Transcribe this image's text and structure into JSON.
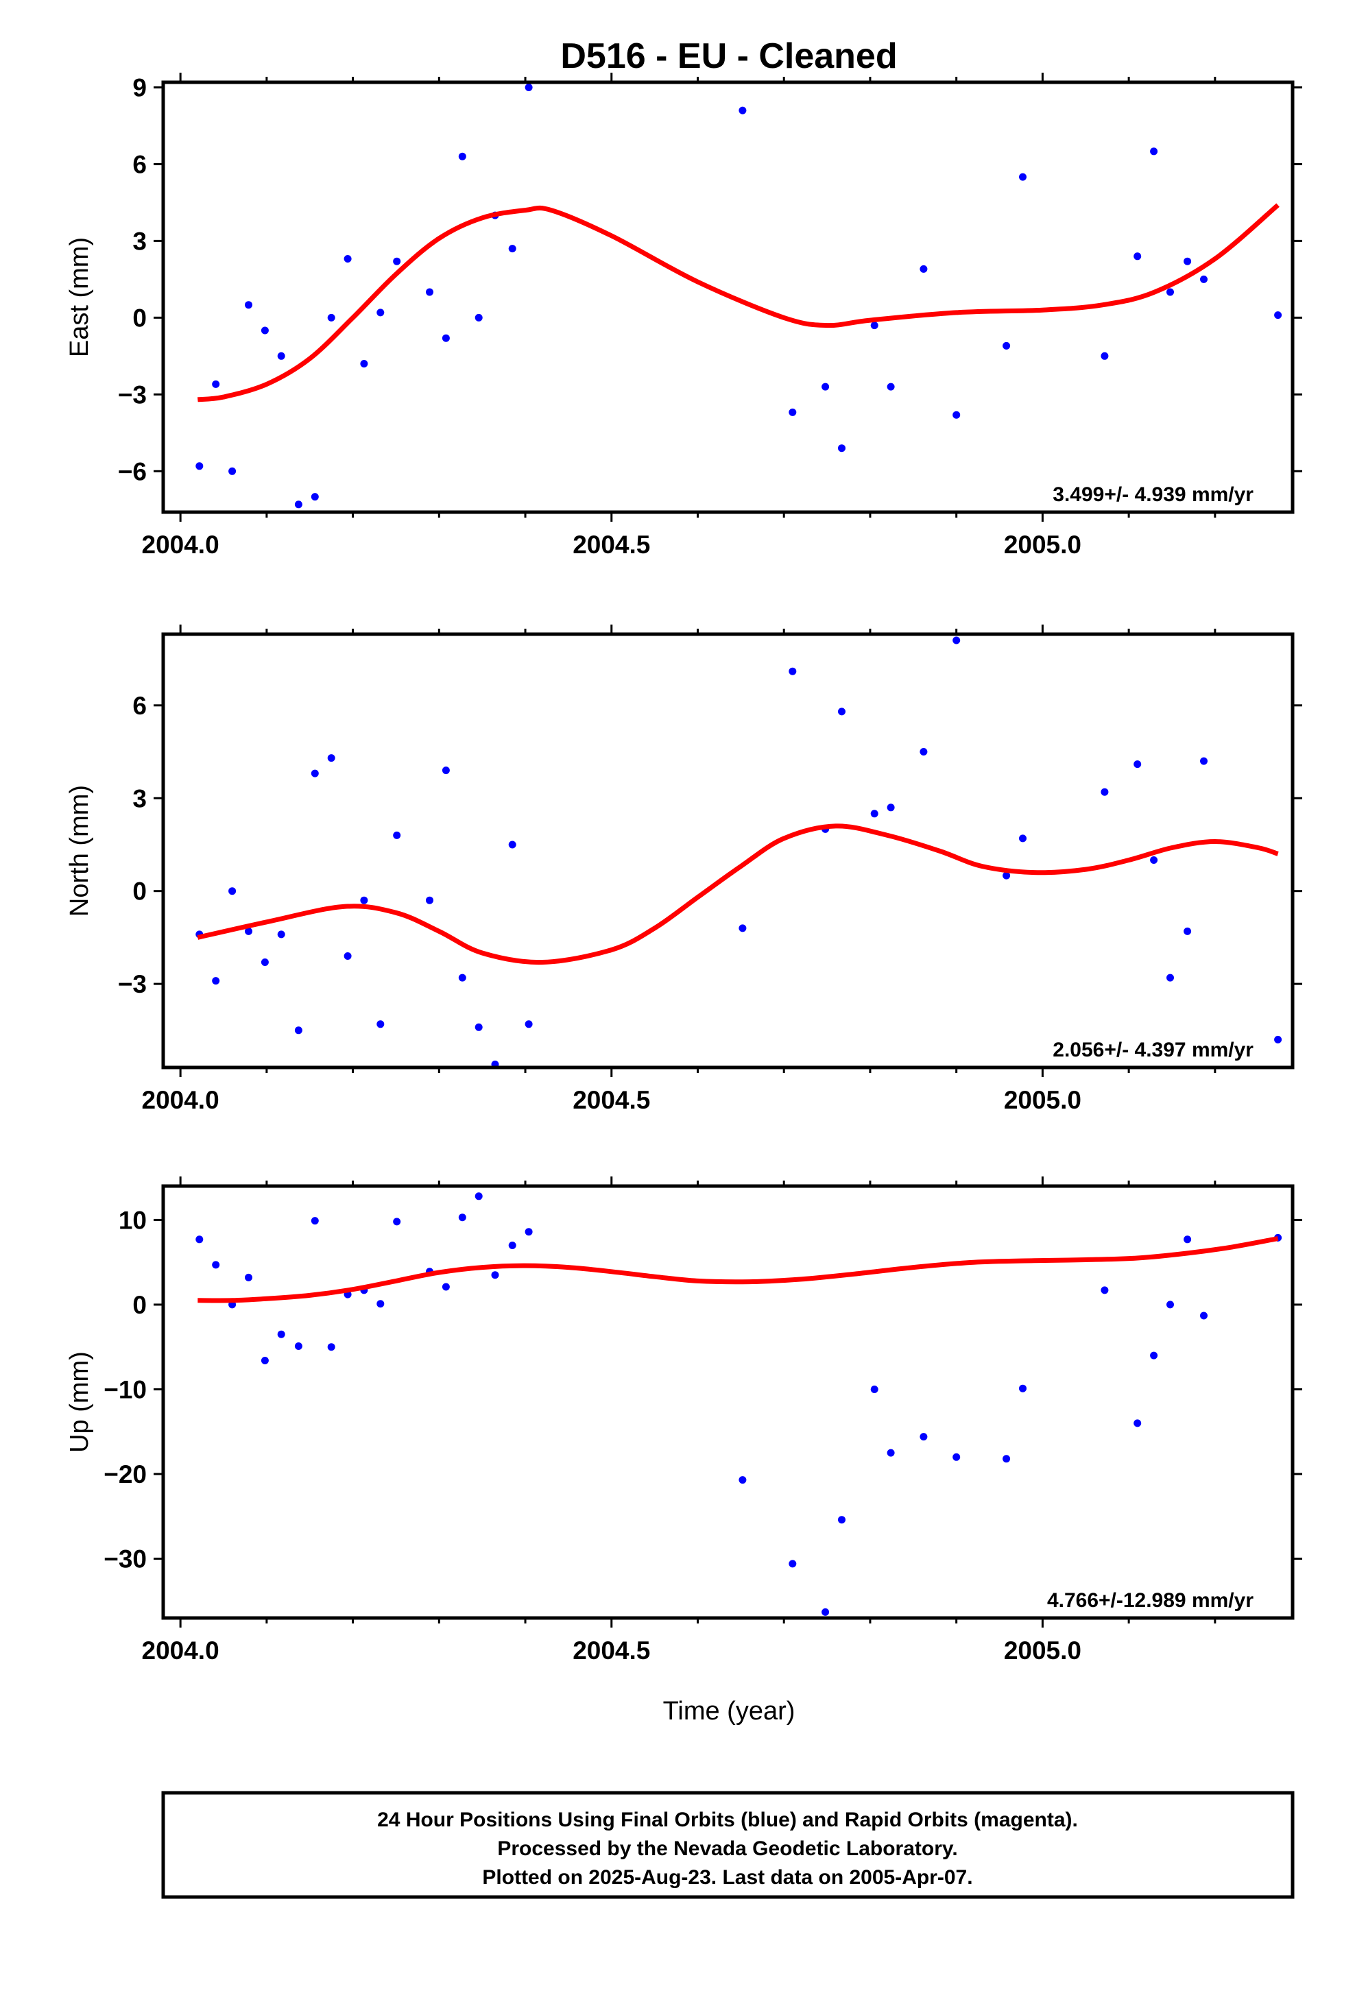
{
  "title": "D516  - EU - Cleaned",
  "xlabel": "Time (year)",
  "footer": {
    "line1": "24 Hour Positions Using Final Orbits (blue) and Rapid Orbits (magenta).",
    "line2": "Processed by the Nevada Geodetic Laboratory.",
    "line3": "Plotted on 2025-Aug-23. Last data on 2005-Apr-07."
  },
  "colors": {
    "points": "#0000ff",
    "fit": "#ff0000",
    "axes": "#000000"
  },
  "chart_data": [
    {
      "type": "scatter",
      "ylabel": "East (mm)",
      "rate_label": "3.499+/- 4.939 mm/yr",
      "xlim": [
        2003.98,
        2005.29
      ],
      "ylim": [
        -7.6,
        9.2
      ],
      "x_ticks": [
        2004.0,
        2004.5,
        2005.0
      ],
      "x_tick_labels": [
        "2004.0",
        "2004.5",
        "2005.0"
      ],
      "y_ticks": [
        -6,
        -3,
        0,
        3,
        6,
        9
      ],
      "y_tick_labels": [
        "−6",
        "−3",
        "0",
        "3",
        "6",
        "9"
      ],
      "points": {
        "x": [
          2004.022,
          2004.041,
          2004.06,
          2004.079,
          2004.098,
          2004.117,
          2004.137,
          2004.156,
          2004.175,
          2004.194,
          2004.213,
          2004.232,
          2004.251,
          2004.289,
          2004.308,
          2004.327,
          2004.346,
          2004.365,
          2004.385,
          2004.404,
          2004.652,
          2004.71,
          2004.748,
          2004.767,
          2004.805,
          2004.824,
          2004.862,
          2004.9,
          2004.958,
          2004.977,
          2005.072,
          2005.11,
          2005.129,
          2005.148,
          2005.168,
          2005.187,
          2005.273
        ],
        "y": [
          -5.8,
          -2.6,
          -6.0,
          0.5,
          -0.5,
          -1.5,
          -7.3,
          -7.0,
          0.0,
          2.3,
          -1.8,
          0.2,
          2.2,
          1.0,
          -0.8,
          6.3,
          0.0,
          4.0,
          2.7,
          9.0,
          8.1,
          -3.7,
          -2.7,
          -5.1,
          -0.3,
          -2.7,
          1.9,
          -3.8,
          -1.1,
          5.5,
          -1.5,
          2.4,
          6.5,
          1.0,
          2.2,
          1.5,
          0.1
        ]
      },
      "fit": {
        "x": [
          2004.02,
          2004.05,
          2004.1,
          2004.15,
          2004.2,
          2004.25,
          2004.3,
          2004.35,
          2004.4,
          2004.43,
          2004.5,
          2004.6,
          2004.7,
          2004.75,
          2004.8,
          2004.9,
          2005.0,
          2005.07,
          2005.13,
          2005.2,
          2005.273
        ],
        "y": [
          -3.2,
          -3.1,
          -2.6,
          -1.6,
          0.0,
          1.7,
          3.1,
          3.9,
          4.2,
          4.2,
          3.2,
          1.4,
          0.0,
          -0.3,
          -0.1,
          0.2,
          0.3,
          0.5,
          1.0,
          2.3,
          4.4
        ]
      }
    },
    {
      "type": "scatter",
      "ylabel": "North (mm)",
      "rate_label": "2.056+/- 4.397 mm/yr",
      "xlim": [
        2003.98,
        2005.29
      ],
      "ylim": [
        -5.7,
        8.3
      ],
      "x_ticks": [
        2004.0,
        2004.5,
        2005.0
      ],
      "x_tick_labels": [
        "2004.0",
        "2004.5",
        "2005.0"
      ],
      "y_ticks": [
        -3,
        0,
        3,
        6
      ],
      "y_tick_labels": [
        "−3",
        "0",
        "3",
        "6"
      ],
      "points": {
        "x": [
          2004.022,
          2004.041,
          2004.06,
          2004.079,
          2004.098,
          2004.117,
          2004.137,
          2004.156,
          2004.175,
          2004.194,
          2004.213,
          2004.232,
          2004.251,
          2004.289,
          2004.308,
          2004.327,
          2004.346,
          2004.365,
          2004.385,
          2004.404,
          2004.652,
          2004.71,
          2004.748,
          2004.767,
          2004.805,
          2004.824,
          2004.862,
          2004.9,
          2004.958,
          2004.977,
          2005.072,
          2005.11,
          2005.129,
          2005.148,
          2005.168,
          2005.187,
          2005.273
        ],
        "y": [
          -1.4,
          -2.9,
          0.0,
          -1.3,
          -2.3,
          -1.4,
          -4.5,
          3.8,
          4.3,
          -2.1,
          -0.3,
          -4.3,
          1.8,
          -0.3,
          3.9,
          -2.8,
          -4.4,
          -5.6,
          1.5,
          -4.3,
          -1.2,
          7.1,
          2.0,
          5.8,
          2.5,
          2.7,
          4.5,
          8.1,
          0.5,
          1.7,
          3.2,
          4.1,
          1.0,
          -2.8,
          -1.3,
          4.2,
          -4.8
        ]
      },
      "fit": {
        "x": [
          2004.02,
          2004.1,
          2004.19,
          2004.25,
          2004.3,
          2004.35,
          2004.42,
          2004.5,
          2004.55,
          2004.6,
          2004.65,
          2004.7,
          2004.76,
          2004.82,
          2004.88,
          2004.93,
          2004.99,
          2005.05,
          2005.1,
          2005.15,
          2005.2,
          2005.25,
          2005.273
        ],
        "y": [
          -1.5,
          -1.0,
          -0.5,
          -0.7,
          -1.3,
          -2.0,
          -2.3,
          -1.9,
          -1.2,
          -0.2,
          0.8,
          1.7,
          2.1,
          1.8,
          1.3,
          0.8,
          0.6,
          0.7,
          1.0,
          1.4,
          1.6,
          1.4,
          1.2
        ]
      }
    },
    {
      "type": "scatter",
      "ylabel": "Up (mm)",
      "rate_label": "4.766+/-12.989 mm/yr",
      "xlim": [
        2003.98,
        2005.29
      ],
      "ylim": [
        -37,
        14
      ],
      "x_ticks": [
        2004.0,
        2004.5,
        2005.0
      ],
      "x_tick_labels": [
        "2004.0",
        "2004.5",
        "2005.0"
      ],
      "y_ticks": [
        -30,
        -20,
        -10,
        0,
        10
      ],
      "y_tick_labels": [
        "−30",
        "−20",
        "−10",
        "0",
        "10"
      ],
      "points": {
        "x": [
          2004.022,
          2004.041,
          2004.06,
          2004.079,
          2004.098,
          2004.117,
          2004.137,
          2004.156,
          2004.175,
          2004.194,
          2004.213,
          2004.232,
          2004.251,
          2004.289,
          2004.308,
          2004.327,
          2004.346,
          2004.365,
          2004.385,
          2004.404,
          2004.652,
          2004.71,
          2004.748,
          2004.767,
          2004.805,
          2004.824,
          2004.862,
          2004.9,
          2004.958,
          2004.977,
          2005.072,
          2005.11,
          2005.129,
          2005.148,
          2005.168,
          2005.187,
          2005.273
        ],
        "y": [
          7.7,
          4.7,
          0.0,
          3.2,
          -6.6,
          -3.5,
          -4.9,
          9.9,
          -5.0,
          1.2,
          1.7,
          0.1,
          9.8,
          3.9,
          2.1,
          10.3,
          12.8,
          3.5,
          7.0,
          8.6,
          -20.7,
          -30.6,
          -36.3,
          -25.4,
          -10.0,
          -17.5,
          -15.6,
          -18.0,
          -18.2,
          -9.9,
          1.7,
          -14.0,
          -6.0,
          0.0,
          7.7,
          -1.3,
          7.9
        ]
      },
      "fit": {
        "x": [
          2004.02,
          2004.06,
          2004.1,
          2004.15,
          2004.2,
          2004.25,
          2004.3,
          2004.35,
          2004.4,
          2004.45,
          2004.5,
          2004.55,
          2004.6,
          2004.66,
          2004.72,
          2004.78,
          2004.85,
          2004.92,
          2004.99,
          2005.05,
          2005.11,
          2005.17,
          2005.22,
          2005.273
        ],
        "y": [
          0.5,
          0.5,
          0.7,
          1.1,
          1.8,
          2.8,
          3.8,
          4.4,
          4.6,
          4.4,
          3.9,
          3.3,
          2.8,
          2.7,
          3.0,
          3.6,
          4.4,
          5.0,
          5.2,
          5.3,
          5.5,
          6.1,
          6.8,
          7.8
        ]
      }
    }
  ]
}
